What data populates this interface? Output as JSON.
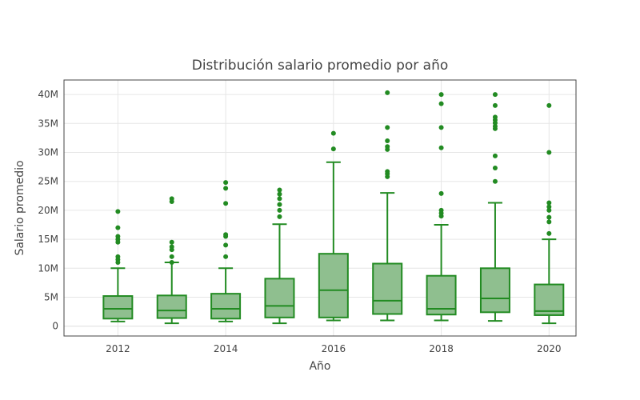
{
  "chart_data": {
    "type": "box",
    "title": "Distribución salario promedio por año",
    "xlabel": "Año",
    "ylabel": "Salario promedio",
    "x_ticks": [
      2012,
      2014,
      2016,
      2018,
      2020
    ],
    "x_range": [
      2011,
      2020.5
    ],
    "y_ticks": [
      0,
      5000000,
      10000000,
      15000000,
      20000000,
      25000000,
      30000000,
      35000000,
      40000000
    ],
    "y_tick_labels": [
      "0",
      "5M",
      "10M",
      "15M",
      "20M",
      "25M",
      "30M",
      "35M",
      "40M"
    ],
    "ylim": [
      -1700000,
      42500000
    ],
    "grid": true,
    "color": "#228b22",
    "fill_color": "#8fbf8f",
    "boxes": [
      {
        "x": 2012,
        "lower_fence": 800000,
        "q1": 1300000,
        "median": 3000000,
        "q3": 5200000,
        "upper_fence": 10000000,
        "outliers": [
          11000000,
          11500000,
          12000000,
          14500000,
          15000000,
          15500000,
          17000000,
          19800000
        ]
      },
      {
        "x": 2013,
        "lower_fence": 500000,
        "q1": 1400000,
        "median": 2700000,
        "q3": 5300000,
        "upper_fence": 11000000,
        "outliers": [
          11000000,
          12000000,
          13200000,
          13700000,
          14500000,
          21500000,
          22000000
        ]
      },
      {
        "x": 2014,
        "lower_fence": 800000,
        "q1": 1300000,
        "median": 3000000,
        "q3": 5600000,
        "upper_fence": 10000000,
        "outliers": [
          12000000,
          14000000,
          15500000,
          15800000,
          21200000,
          23800000,
          24800000
        ]
      },
      {
        "x": 2015,
        "lower_fence": 500000,
        "q1": 1500000,
        "median": 3500000,
        "q3": 8200000,
        "upper_fence": 17600000,
        "outliers": [
          18900000,
          20000000,
          21000000,
          22000000,
          22800000,
          23500000
        ]
      },
      {
        "x": 2016,
        "lower_fence": 1000000,
        "q1": 1500000,
        "median": 6200000,
        "q3": 12500000,
        "upper_fence": 28300000,
        "outliers": [
          30600000,
          33300000
        ]
      },
      {
        "x": 2017,
        "lower_fence": 1000000,
        "q1": 2100000,
        "median": 4400000,
        "q3": 10800000,
        "upper_fence": 23000000,
        "outliers": [
          25800000,
          26300000,
          26700000,
          30500000,
          31000000,
          32000000,
          34300000,
          40300000
        ]
      },
      {
        "x": 2018,
        "lower_fence": 1000000,
        "q1": 2000000,
        "median": 3000000,
        "q3": 8700000,
        "upper_fence": 17500000,
        "outliers": [
          19000000,
          19500000,
          20000000,
          22900000,
          30800000,
          34300000,
          38400000,
          40000000
        ]
      },
      {
        "x": 2019,
        "lower_fence": 900000,
        "q1": 2400000,
        "median": 4800000,
        "q3": 10000000,
        "upper_fence": 21300000,
        "outliers": [
          25000000,
          27300000,
          29400000,
          34100000,
          34500000,
          35100000,
          35600000,
          36100000,
          38100000,
          40000000
        ]
      },
      {
        "x": 2020,
        "lower_fence": 500000,
        "q1": 1900000,
        "median": 2600000,
        "q3": 7200000,
        "upper_fence": 15000000,
        "outliers": [
          16000000,
          18000000,
          18800000,
          20000000,
          20600000,
          21300000,
          30000000,
          38100000
        ]
      }
    ]
  }
}
